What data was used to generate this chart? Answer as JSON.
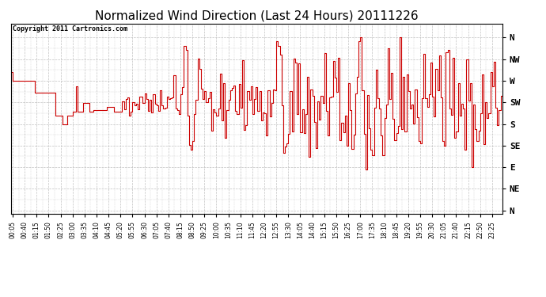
{
  "title": "Normalized Wind Direction (Last 24 Hours) 20111226",
  "copyright_text": "Copyright 2011 Cartronics.com",
  "ytick_labels": [
    "N",
    "NW",
    "W",
    "SW",
    "S",
    "SE",
    "E",
    "NE",
    "N"
  ],
  "ytick_values": [
    1.0,
    0.875,
    0.75,
    0.625,
    0.5,
    0.375,
    0.25,
    0.125,
    0.0
  ],
  "line_color": "#cc0000",
  "background_color": "#ffffff",
  "grid_color": "#bbbbbb",
  "title_fontsize": 11,
  "ylabel_fontsize": 8,
  "seed": 42,
  "n_points": 288,
  "xlim": [
    0,
    287
  ],
  "ylim": [
    -0.02,
    1.08
  ]
}
